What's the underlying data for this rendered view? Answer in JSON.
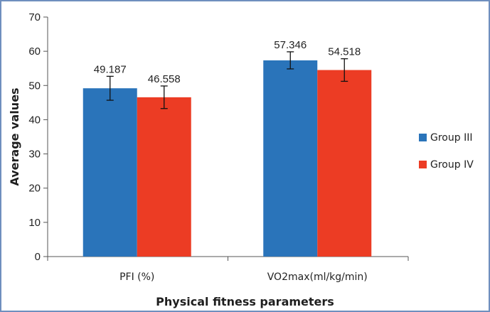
{
  "chart_data": {
    "type": "bar",
    "categories": [
      "PFI (%)",
      "VO2max(ml/kg/min)"
    ],
    "series": [
      {
        "name": "Group III",
        "color": "#2a74ba",
        "values": [
          49.187,
          57.346
        ],
        "value_labels": [
          "49.187",
          "57.346"
        ],
        "error": [
          3.5,
          2.5
        ]
      },
      {
        "name": "Group IV",
        "color": "#ec3c24",
        "values": [
          46.558,
          54.518
        ],
        "value_labels": [
          "46.558",
          "54.518"
        ],
        "error": [
          3.3,
          3.3
        ]
      }
    ],
    "xlabel": "Physical fitness parameters",
    "ylabel": "Average values",
    "ylim": [
      0,
      70
    ],
    "yticks": [
      "0",
      "10",
      "20",
      "30",
      "40",
      "50",
      "60",
      "70"
    ],
    "grid": false,
    "legend_position": "right"
  }
}
